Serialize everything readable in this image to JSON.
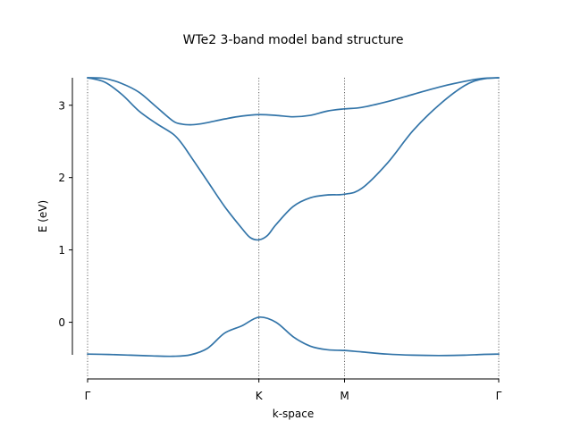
{
  "chart_data": {
    "type": "line",
    "title": "WTe2 3-band model band structure",
    "xlabel": "k-space",
    "ylabel": "E (eV)",
    "xlim": [
      0,
      4.8
    ],
    "ylim": [
      -0.45,
      3.38
    ],
    "k_points": [
      {
        "label": "Γ",
        "x": 0.0
      },
      {
        "label": "K",
        "x": 2.0
      },
      {
        "label": "M",
        "x": 3.0
      },
      {
        "label": "Γ",
        "x": 4.8
      }
    ],
    "yticks": [
      0,
      1,
      2,
      3
    ],
    "series": [
      {
        "x": [
          0.0,
          0.25,
          0.5,
          0.75,
          1.0,
          1.2,
          1.4,
          1.6,
          1.8,
          2.0,
          2.2,
          2.4,
          2.6,
          2.8,
          3.0,
          3.2,
          3.5,
          3.8,
          4.1,
          4.4,
          4.6,
          4.8
        ],
        "values": [
          -0.44,
          -0.445,
          -0.455,
          -0.465,
          -0.47,
          -0.45,
          -0.36,
          -0.15,
          -0.05,
          0.07,
          0.0,
          -0.2,
          -0.33,
          -0.38,
          -0.39,
          -0.41,
          -0.44,
          -0.455,
          -0.46,
          -0.455,
          -0.445,
          -0.44
        ]
      },
      {
        "x": [
          0.0,
          0.2,
          0.4,
          0.6,
          0.8,
          1.0,
          1.1,
          1.2,
          1.4,
          1.6,
          1.8,
          1.9,
          2.0,
          2.1,
          2.2,
          2.4,
          2.6,
          2.8,
          3.0,
          3.2,
          3.5,
          3.8,
          4.1,
          4.4,
          4.6,
          4.8
        ],
        "values": [
          3.38,
          3.32,
          3.15,
          2.92,
          2.75,
          2.6,
          2.47,
          2.3,
          1.95,
          1.6,
          1.3,
          1.17,
          1.14,
          1.2,
          1.35,
          1.6,
          1.72,
          1.76,
          1.77,
          1.85,
          2.2,
          2.65,
          3.0,
          3.27,
          3.36,
          3.38
        ]
      },
      {
        "x": [
          0.0,
          0.2,
          0.4,
          0.6,
          0.8,
          1.0,
          1.1,
          1.2,
          1.3,
          1.4,
          1.6,
          1.8,
          2.0,
          2.2,
          2.4,
          2.6,
          2.8,
          3.0,
          3.2,
          3.5,
          3.8,
          4.1,
          4.4,
          4.6,
          4.8
        ],
        "values": [
          3.38,
          3.37,
          3.3,
          3.18,
          2.98,
          2.78,
          2.74,
          2.73,
          2.74,
          2.76,
          2.81,
          2.85,
          2.87,
          2.86,
          2.84,
          2.86,
          2.92,
          2.95,
          2.97,
          3.05,
          3.15,
          3.25,
          3.33,
          3.37,
          3.38
        ]
      }
    ],
    "grid": false,
    "legend": "none"
  }
}
